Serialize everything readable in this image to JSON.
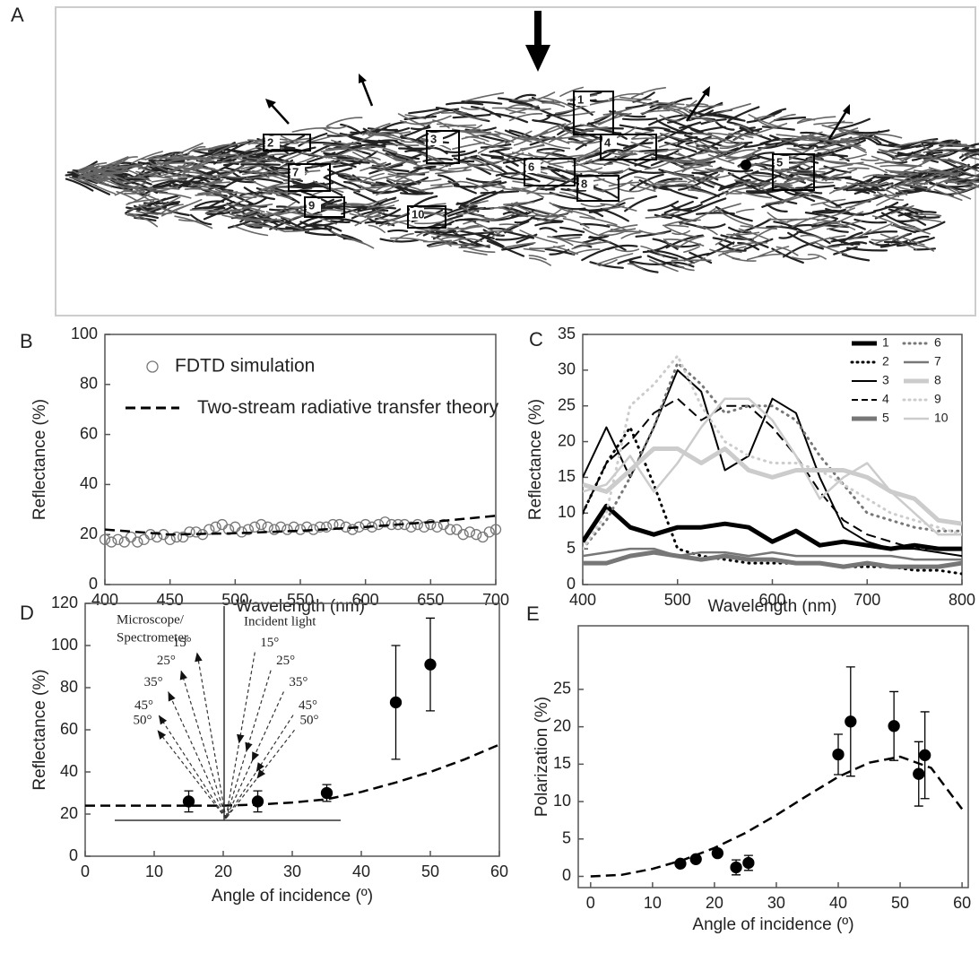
{
  "panel_a": {
    "label": "A",
    "boxes": [
      "1",
      "2",
      "3",
      "4",
      "5",
      "6",
      "7",
      "8",
      "9",
      "10"
    ]
  },
  "chart_data": [
    {
      "type": "scatter",
      "panel_label": "B",
      "x_label": "Wavelength (nm)",
      "y_label": "Reflectance (%)",
      "xlim": [
        400,
        700
      ],
      "xticks": [
        400,
        450,
        500,
        550,
        600,
        650,
        700
      ],
      "ylim": [
        0,
        100
      ],
      "yticks": [
        0,
        20,
        40,
        60,
        80,
        100
      ],
      "series": [
        {
          "name": "FDTD simulation",
          "color": "#777777",
          "marker": "open-circle",
          "x": [
            400,
            405,
            410,
            415,
            420,
            425,
            430,
            435,
            440,
            445,
            450,
            455,
            460,
            465,
            470,
            475,
            480,
            485,
            490,
            495,
            500,
            505,
            510,
            515,
            520,
            525,
            530,
            535,
            540,
            545,
            550,
            555,
            560,
            565,
            570,
            575,
            580,
            585,
            590,
            595,
            600,
            605,
            610,
            615,
            620,
            625,
            630,
            635,
            640,
            645,
            650,
            655,
            660,
            665,
            670,
            675,
            680,
            685,
            690,
            695,
            700
          ],
          "values": [
            18,
            17,
            18,
            17,
            19,
            17,
            18,
            20,
            19,
            20,
            18,
            19,
            19,
            21,
            21,
            20,
            22,
            23,
            24,
            22,
            23,
            21,
            22,
            23,
            24,
            23,
            22,
            23,
            22,
            23,
            22,
            23,
            22,
            23,
            23,
            24,
            24,
            23,
            22,
            23,
            24,
            23,
            24,
            25,
            24,
            24,
            24,
            23,
            24,
            23,
            24,
            23,
            24,
            22,
            22,
            20,
            21,
            20,
            19,
            21,
            22
          ]
        },
        {
          "name": "Two-stream radiative transfer theory",
          "color": "#000000",
          "line": "dashed",
          "x": [
            400,
            450,
            500,
            550,
            600,
            650,
            700
          ],
          "values": [
            22,
            20,
            20.5,
            21.5,
            23,
            25,
            27.5
          ]
        }
      ]
    },
    {
      "type": "line",
      "panel_label": "C",
      "x_label": "Wavelength (nm)",
      "y_label": "Reflectance (%)",
      "xlim": [
        400,
        800
      ],
      "xticks": [
        400,
        500,
        600,
        700,
        800
      ],
      "ylim": [
        0,
        35
      ],
      "yticks": [
        0,
        5,
        10,
        15,
        20,
        25,
        30,
        35
      ],
      "x": [
        400,
        425,
        450,
        475,
        500,
        525,
        550,
        575,
        600,
        625,
        650,
        675,
        700,
        725,
        750,
        775,
        800
      ],
      "series": [
        {
          "name": "1",
          "color": "#000000",
          "line": "solid",
          "width": 5,
          "values": [
            6,
            11,
            8,
            7,
            8,
            8,
            8.5,
            8,
            6,
            7.5,
            5.5,
            6,
            5.5,
            5,
            5.5,
            5,
            5
          ]
        },
        {
          "name": "2",
          "color": "#000000",
          "line": "dotted",
          "width": 3,
          "values": [
            10,
            17,
            22,
            14,
            5,
            4,
            3.5,
            3,
            3,
            3,
            3,
            2.5,
            2.5,
            2.5,
            2,
            2,
            1.5
          ]
        },
        {
          "name": "3",
          "color": "#000000",
          "line": "solid",
          "width": 2,
          "values": [
            15,
            22,
            15,
            22,
            30,
            27,
            16,
            18,
            26,
            24,
            15,
            8,
            6,
            5,
            5,
            4.5,
            4
          ]
        },
        {
          "name": "4",
          "color": "#000000",
          "line": "dashed",
          "width": 2,
          "values": [
            10,
            17,
            20,
            24,
            26,
            23,
            25,
            25,
            22,
            18,
            13,
            9,
            7,
            6,
            5,
            5,
            5
          ]
        },
        {
          "name": "5",
          "color": "#777777",
          "line": "solid",
          "width": 5,
          "values": [
            3,
            3,
            4,
            4.5,
            4,
            3.5,
            4,
            3.5,
            3.5,
            3,
            3,
            2.5,
            3,
            2.5,
            2.5,
            2.5,
            3
          ]
        },
        {
          "name": "6",
          "color": "#777777",
          "line": "dotted",
          "width": 3,
          "values": [
            5,
            9,
            15,
            22,
            31,
            28,
            24,
            25,
            25,
            23,
            18,
            14,
            10,
            9,
            8,
            7.5,
            7.5
          ]
        },
        {
          "name": "7",
          "color": "#777777",
          "line": "solid",
          "width": 2.5,
          "values": [
            4,
            4.5,
            5,
            5,
            4,
            4.5,
            4.5,
            4,
            4.5,
            4,
            4,
            4,
            4,
            4,
            3.5,
            3.5,
            3.5
          ]
        },
        {
          "name": "8",
          "color": "#cccccc",
          "line": "solid",
          "width": 5,
          "values": [
            14,
            13,
            16,
            19,
            19,
            17,
            19,
            16,
            15,
            16,
            16,
            16,
            15,
            13,
            12,
            9,
            8.5
          ]
        },
        {
          "name": "9",
          "color": "#cccccc",
          "line": "dotted",
          "width": 3,
          "values": [
            5,
            10,
            25,
            28,
            32,
            25,
            20,
            18,
            17,
            17,
            16,
            14,
            12,
            10,
            9,
            8,
            7
          ]
        },
        {
          "name": "10",
          "color": "#cccccc",
          "line": "solid",
          "width": 2.5,
          "values": [
            13,
            14,
            18,
            13,
            17,
            22,
            26,
            26,
            23,
            18,
            12,
            15,
            17,
            13,
            10,
            7,
            7
          ]
        }
      ]
    },
    {
      "type": "scatter",
      "panel_label": "D",
      "x_label": "Angle of incidence (º)",
      "y_label": "Reflectance (%)",
      "xlim": [
        0,
        60
      ],
      "xticks": [
        0,
        10,
        20,
        30,
        40,
        50,
        60
      ],
      "ylim": [
        0,
        120
      ],
      "yticks": [
        0,
        20,
        40,
        60,
        80,
        100,
        120
      ],
      "series": [
        {
          "color": "#000000",
          "marker": "filled-circle",
          "x": [
            15,
            25,
            35,
            45,
            50
          ],
          "values": [
            26,
            26,
            30,
            73,
            91
          ],
          "errors": [
            5,
            5,
            4,
            27,
            22
          ]
        },
        {
          "color": "#000000",
          "line": "dashed",
          "x": [
            0,
            5,
            10,
            15,
            20,
            25,
            30,
            35,
            40,
            45,
            50,
            55,
            60
          ],
          "values": [
            24,
            24,
            24,
            24,
            24,
            24.5,
            25.5,
            27,
            30.5,
            35,
            40,
            46,
            53
          ]
        }
      ],
      "inset": {
        "left_label": [
          "Microscope/",
          "Spectrometer"
        ],
        "right_label": "Incident light",
        "angles": [
          {
            "value": 15,
            "label": "15°"
          },
          {
            "value": 25,
            "label": "25°"
          },
          {
            "value": 35,
            "label": "35°"
          },
          {
            "value": 45,
            "label": "45°"
          },
          {
            "value": 50,
            "label": "50°"
          }
        ]
      }
    },
    {
      "type": "scatter",
      "panel_label": "E",
      "x_label": "Angle of incidence (º)",
      "y_label": "Polarization (%)",
      "xlim": [
        -2,
        61
      ],
      "xticks": [
        0,
        10,
        20,
        30,
        40,
        50,
        60
      ],
      "ylim": [
        -1.5,
        33.5
      ],
      "yticks": [
        0,
        5,
        10,
        15,
        20,
        25
      ],
      "series": [
        {
          "color": "#000000",
          "marker": "filled-circle",
          "x": [
            14.5,
            17,
            20.5,
            23.5,
            25.5,
            40,
            42,
            49,
            53,
            54
          ],
          "values": [
            1.7,
            2.3,
            3.1,
            1.2,
            1.8,
            16.3,
            20.7,
            20.1,
            13.7,
            16.2
          ],
          "errors": [
            0.3,
            0.3,
            0.3,
            1,
            1,
            2.7,
            7.3,
            4.6,
            4.3,
            5.8
          ]
        },
        {
          "color": "#000000",
          "line": "dashed",
          "x": [
            0,
            5,
            10,
            15,
            20,
            25,
            30,
            35,
            40,
            45,
            50,
            55,
            60
          ],
          "values": [
            0,
            0.2,
            1,
            2.2,
            3.8,
            5.8,
            8.2,
            10.8,
            13.3,
            15.2,
            16,
            14.5,
            9
          ]
        }
      ]
    }
  ]
}
